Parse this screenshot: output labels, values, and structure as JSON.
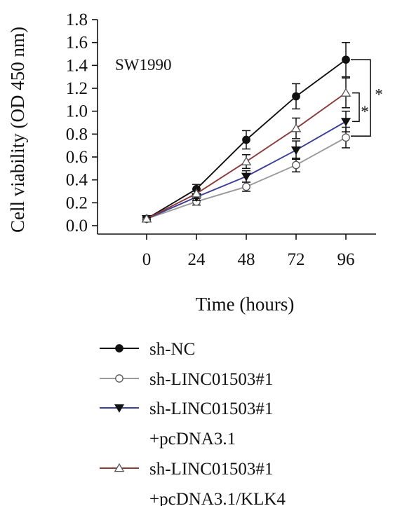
{
  "chart_data": {
    "type": "line",
    "title": "",
    "annotation": "SW1990",
    "xlabel": "Time (hours)",
    "ylabel": "Cell viability (OD 450 nm)",
    "x": [
      0,
      24,
      48,
      72,
      96
    ],
    "x_ticks": [
      "0",
      "24",
      "48",
      "72",
      "96"
    ],
    "ylim": [
      0.0,
      1.8
    ],
    "y_ticks": [
      "0.0",
      "0.2",
      "0.4",
      "0.6",
      "0.8",
      "1.0",
      "1.2",
      "1.4",
      "1.6",
      "1.8"
    ],
    "grid": false,
    "legend_position": "bottom",
    "significance_labels": [
      "*",
      "*"
    ],
    "series": [
      {
        "name": "sh-NC",
        "color": "#111111",
        "marker": "filled-circle",
        "values": [
          0.06,
          0.32,
          0.75,
          1.13,
          1.45
        ],
        "errors": [
          0.01,
          0.04,
          0.08,
          0.11,
          0.15
        ]
      },
      {
        "name": "sh-LINC01503#1",
        "color": "#9a9a9a",
        "marker": "open-circle",
        "values": [
          0.06,
          0.21,
          0.34,
          0.53,
          0.77
        ],
        "errors": [
          0.01,
          0.03,
          0.04,
          0.06,
          0.09
        ]
      },
      {
        "name": "sh-LINC01503#1\n+pcDNA3.1",
        "name_lines": [
          "sh-LINC01503#1",
          "+pcDNA3.1"
        ],
        "color": "#3a3f98",
        "marker": "filled-triangle-down",
        "values": [
          0.06,
          0.25,
          0.43,
          0.66,
          0.91
        ],
        "errors": [
          0.01,
          0.03,
          0.05,
          0.08,
          0.09
        ]
      },
      {
        "name": "sh-LINC01503#1\n+pcDNA3.1/KLK4",
        "name_lines": [
          "sh-LINC01503#1",
          "+pcDNA3.1/KLK4"
        ],
        "color": "#8b3a3a",
        "marker": "open-triangle-up",
        "values": [
          0.06,
          0.28,
          0.56,
          0.85,
          1.16
        ],
        "errors": [
          0.01,
          0.04,
          0.06,
          0.09,
          0.13
        ]
      }
    ]
  }
}
